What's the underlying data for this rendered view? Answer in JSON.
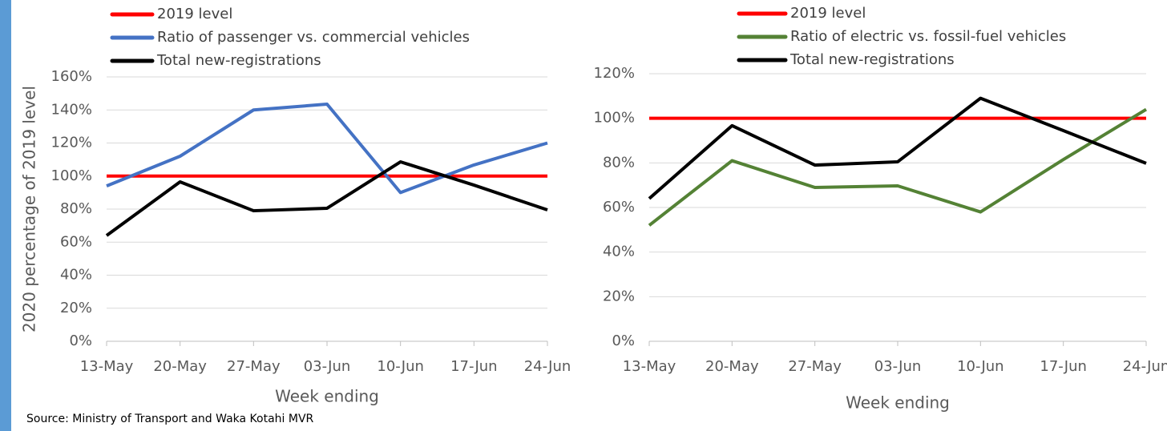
{
  "chart_data": [
    {
      "type": "line",
      "y_label": "2020 percentage of 2019 level",
      "x_label": "Week ending",
      "categories": [
        "13-May",
        "20-May",
        "27-May",
        "03-Jun",
        "10-Jun",
        "17-Jun",
        "24-Jun"
      ],
      "ylim": [
        0,
        160
      ],
      "yticks": [
        {
          "value": 0,
          "label": "0%"
        },
        {
          "value": 20,
          "label": "20%"
        },
        {
          "value": 40,
          "label": "40%"
        },
        {
          "value": 60,
          "label": "60%"
        },
        {
          "value": 80,
          "label": "80%"
        },
        {
          "value": 100,
          "label": "100%"
        },
        {
          "value": 120,
          "label": "120%"
        },
        {
          "value": 140,
          "label": "140%"
        },
        {
          "value": 160,
          "label": "160%"
        }
      ],
      "grid": true,
      "legend": "top-left",
      "series": [
        {
          "name": "2019 level",
          "color": "#ff0000",
          "values": [
            100,
            100,
            100,
            100,
            100,
            100,
            100
          ]
        },
        {
          "name": "Ratio of passenger vs. commercial vehicles",
          "color": "#4472c4",
          "values": [
            94,
            112,
            140,
            143.5,
            90,
            106.7,
            120
          ]
        },
        {
          "name": "Total new-registrations",
          "color": "#000000",
          "values": [
            64,
            96.5,
            79,
            80.5,
            108.6,
            94.5,
            79.5
          ]
        }
      ]
    },
    {
      "type": "line",
      "x_label": "Week ending",
      "categories": [
        "13-May",
        "20-May",
        "27-May",
        "03-Jun",
        "10-Jun",
        "17-Jun",
        "24-Jun"
      ],
      "ylim": [
        0,
        120
      ],
      "yticks": [
        {
          "value": 0,
          "label": "0%"
        },
        {
          "value": 20,
          "label": "20%"
        },
        {
          "value": 40,
          "label": "40%"
        },
        {
          "value": 60,
          "label": "60%"
        },
        {
          "value": 80,
          "label": "80%"
        },
        {
          "value": 100,
          "label": "100%"
        },
        {
          "value": 120,
          "label": "120%"
        }
      ],
      "grid": true,
      "legend": "top-left",
      "series": [
        {
          "name": "2019 level",
          "color": "#ff0000",
          "values": [
            100,
            100,
            100,
            100,
            100,
            100,
            100
          ]
        },
        {
          "name": "Ratio of electric vs. fossil-fuel vehicles",
          "color": "#548235",
          "values": [
            52,
            81,
            69,
            69.7,
            58,
            81.5,
            104
          ]
        },
        {
          "name": "Total new-registrations",
          "color": "#000000",
          "values": [
            64,
            96.7,
            79,
            80.5,
            109,
            94.5,
            79.8
          ]
        }
      ]
    }
  ],
  "source": "Source: Ministry of Transport and Waka Kotahi MVR"
}
